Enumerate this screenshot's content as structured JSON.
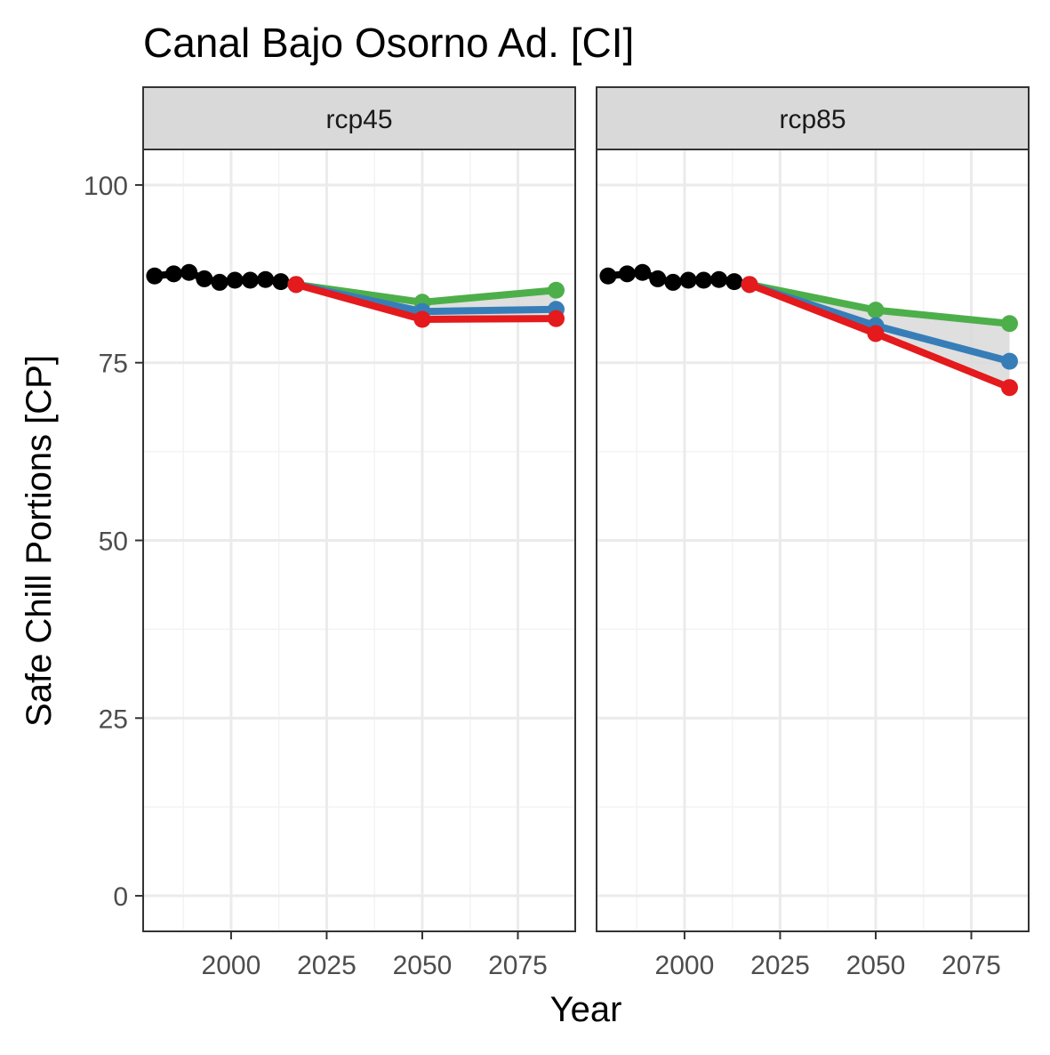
{
  "chart_data": {
    "type": "line",
    "title": "Canal Bajo Osorno Ad. [CI]",
    "xlabel": "Year",
    "ylabel": "Safe Chill Portions [CP]",
    "xlim": [
      1977,
      2090
    ],
    "ylim": [
      -5,
      105
    ],
    "x_ticks": [
      2000,
      2025,
      2050,
      2075
    ],
    "y_ticks": [
      0,
      25,
      50,
      75,
      100
    ],
    "grid": true,
    "legend": "none",
    "colors": {
      "historical": "#000000",
      "low": "#e41a1c",
      "mid": "#377eb8",
      "high": "#4daf4a",
      "ribbon": "#d9d9d9",
      "strip_fill": "#d9d9d9",
      "grid_major": "#ebebeb",
      "grid_minor": "#f3f3f3",
      "panel_border": "#333333"
    },
    "historical": {
      "x": [
        1980,
        1985,
        1989,
        1993,
        1997,
        2001,
        2005,
        2009,
        2013
      ],
      "y": [
        87.2,
        87.5,
        87.7,
        86.8,
        86.3,
        86.6,
        86.6,
        86.7,
        86.4
      ]
    },
    "panels": [
      {
        "label": "rcp45",
        "series": [
          {
            "key": "low",
            "x": [
              2017,
              2050,
              2085
            ],
            "y": [
              86.0,
              81.1,
              81.2
            ]
          },
          {
            "key": "mid",
            "x": [
              2017,
              2050,
              2085
            ],
            "y": [
              86.0,
              82.2,
              82.5
            ]
          },
          {
            "key": "high",
            "x": [
              2017,
              2050,
              2085
            ],
            "y": [
              86.0,
              83.5,
              85.2
            ]
          }
        ]
      },
      {
        "label": "rcp85",
        "series": [
          {
            "key": "low",
            "x": [
              2017,
              2050,
              2085
            ],
            "y": [
              86.0,
              79.1,
              71.5
            ]
          },
          {
            "key": "mid",
            "x": [
              2017,
              2050,
              2085
            ],
            "y": [
              86.0,
              80.2,
              75.2
            ]
          },
          {
            "key": "high",
            "x": [
              2017,
              2050,
              2085
            ],
            "y": [
              86.0,
              82.4,
              80.5
            ]
          }
        ]
      }
    ]
  }
}
